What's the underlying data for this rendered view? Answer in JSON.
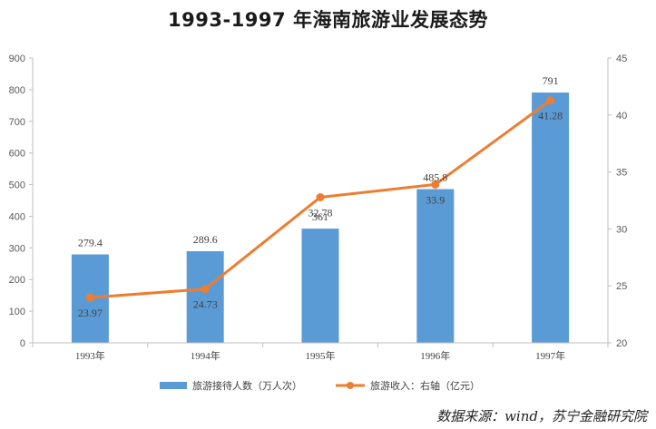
{
  "title": "1993-1997 年海南旅游业发展态势",
  "source": "数据来源：wind，苏宁金融研究院",
  "colors": {
    "bar": "#5b9bd5",
    "line": "#ed7d31",
    "axis": "#bfbfbf"
  },
  "chart_data": {
    "type": "bar+line",
    "categories": [
      "1993年",
      "1994年",
      "1995年",
      "1996年",
      "1997年"
    ],
    "series": [
      {
        "name": "旅游接待人数（万人次）",
        "type": "bar",
        "axis": "left",
        "values": [
          279.4,
          289.6,
          361,
          485.8,
          791
        ],
        "labels": [
          "279.4",
          "289.6",
          "361",
          "485.8",
          "791"
        ]
      },
      {
        "name": "旅游收入：右轴（亿元）",
        "type": "line",
        "axis": "right",
        "values": [
          23.97,
          24.73,
          32.78,
          33.9,
          41.28
        ],
        "labels": [
          "23.97",
          "24.73",
          "32.78",
          "33.9",
          "41.28"
        ]
      }
    ],
    "y_left": {
      "min": 0,
      "max": 900,
      "step": 100
    },
    "y_right": {
      "min": 20,
      "max": 45,
      "step": 5
    },
    "legend": "bottom-center",
    "grid": false
  }
}
